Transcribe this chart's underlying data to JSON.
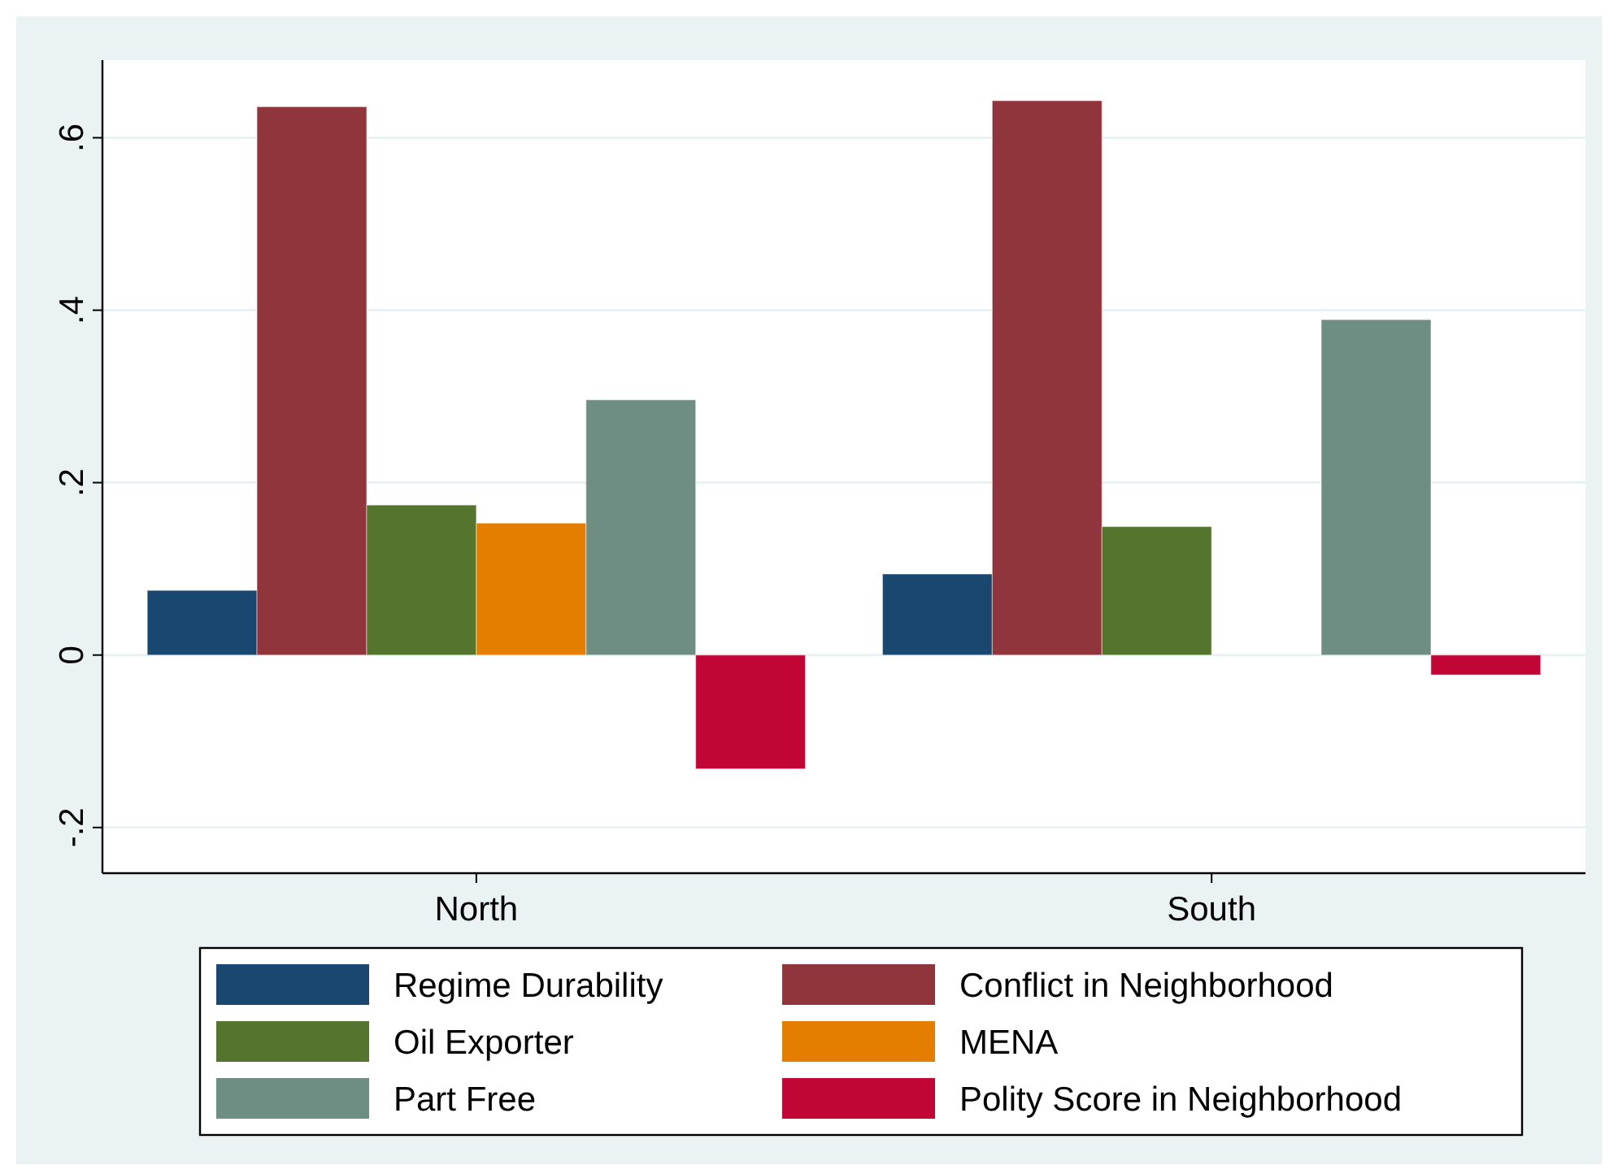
{
  "chart_data": {
    "type": "bar",
    "categories": [
      "North",
      "South"
    ],
    "series": [
      {
        "name": "Regime Durability",
        "color": "#1a476f",
        "values": [
          0.075,
          0.094
        ]
      },
      {
        "name": "Conflict in Neighborhood",
        "color": "#90353b",
        "values": [
          0.636,
          0.643
        ]
      },
      {
        "name": "Oil Exporter",
        "color": "#55752f",
        "values": [
          0.174,
          0.149
        ]
      },
      {
        "name": "MENA",
        "color": "#e37e00",
        "values": [
          0.153,
          null
        ]
      },
      {
        "name": "Part Free",
        "color": "#6e8e84",
        "values": [
          0.296,
          0.389
        ]
      },
      {
        "name": "Polity Score in Neighborhood",
        "color": "#c10534",
        "values": [
          -0.132,
          -0.023
        ]
      }
    ],
    "ylim": [
      -0.253,
      0.69
    ],
    "yticks": [
      {
        "value": -0.2,
        "label": "-.2"
      },
      {
        "value": 0,
        "label": "0"
      },
      {
        "value": 0.2,
        "label": ".2"
      },
      {
        "value": 0.4,
        "label": ".4"
      },
      {
        "value": 0.6,
        "label": ".6"
      }
    ],
    "grid": "y",
    "legend": "bottom"
  }
}
